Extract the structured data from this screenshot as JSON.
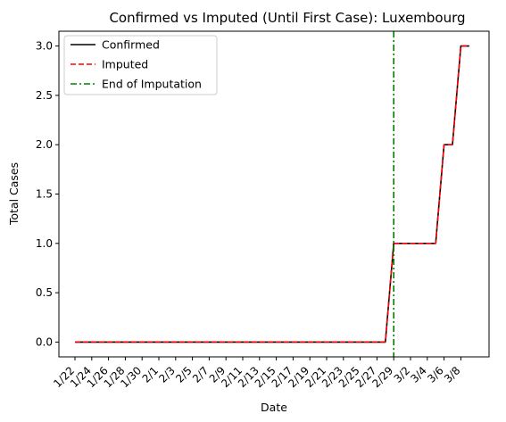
{
  "chart_data": {
    "type": "line",
    "title": "Confirmed vs Imputed (Until First Case): Luxembourg",
    "xlabel": "Date",
    "ylabel": "Total Cases",
    "ylim": [
      -0.15,
      3.15
    ],
    "yticks": [
      "0.0",
      "0.5",
      "1.0",
      "1.5",
      "2.0",
      "2.5",
      "3.0"
    ],
    "yticks_values": [
      0,
      0.5,
      1.0,
      1.5,
      2.0,
      2.5,
      3.0
    ],
    "x": [
      "1/22",
      "1/23",
      "1/24",
      "1/25",
      "1/26",
      "1/27",
      "1/28",
      "1/29",
      "1/30",
      "1/31",
      "2/1",
      "2/2",
      "2/3",
      "2/4",
      "2/5",
      "2/6",
      "2/7",
      "2/8",
      "2/9",
      "2/10",
      "2/11",
      "2/12",
      "2/13",
      "2/14",
      "2/15",
      "2/16",
      "2/17",
      "2/18",
      "2/19",
      "2/20",
      "2/21",
      "2/22",
      "2/23",
      "2/24",
      "2/25",
      "2/26",
      "2/27",
      "2/28",
      "2/29",
      "3/1",
      "3/2",
      "3/3",
      "3/4",
      "3/5",
      "3/6",
      "3/7",
      "3/8",
      "3/9"
    ],
    "xticks": [
      "1/22",
      "1/24",
      "1/26",
      "1/28",
      "1/30",
      "2/1",
      "2/3",
      "2/5",
      "2/7",
      "2/9",
      "2/11",
      "2/13",
      "2/15",
      "2/17",
      "2/19",
      "2/21",
      "2/23",
      "2/25",
      "2/27",
      "2/29",
      "3/2",
      "3/4",
      "3/6",
      "3/8"
    ],
    "series": [
      {
        "name": "Confirmed",
        "color": "#000000",
        "style": "solid",
        "values": [
          0,
          0,
          0,
          0,
          0,
          0,
          0,
          0,
          0,
          0,
          0,
          0,
          0,
          0,
          0,
          0,
          0,
          0,
          0,
          0,
          0,
          0,
          0,
          0,
          0,
          0,
          0,
          0,
          0,
          0,
          0,
          0,
          0,
          0,
          0,
          0,
          0,
          0,
          1,
          1,
          1,
          1,
          1,
          1,
          2,
          2,
          3,
          3
        ]
      },
      {
        "name": "Imputed",
        "color": "#ff0000",
        "style": "dashed",
        "values": [
          0,
          0,
          0,
          0,
          0,
          0,
          0,
          0,
          0,
          0,
          0,
          0,
          0,
          0,
          0,
          0,
          0,
          0,
          0,
          0,
          0,
          0,
          0,
          0,
          0,
          0,
          0,
          0,
          0,
          0,
          0,
          0,
          0,
          0,
          0,
          0,
          0,
          0,
          1,
          1,
          1,
          1,
          1,
          1,
          2,
          2,
          3,
          3
        ]
      }
    ],
    "vline": {
      "name": "End of Imputation",
      "x": "2/29",
      "color": "#008000",
      "style": "dashdot"
    },
    "legend": {
      "placement": "upper-left",
      "entries": [
        "Confirmed",
        "Imputed",
        "End of Imputation"
      ]
    },
    "grid": false
  }
}
